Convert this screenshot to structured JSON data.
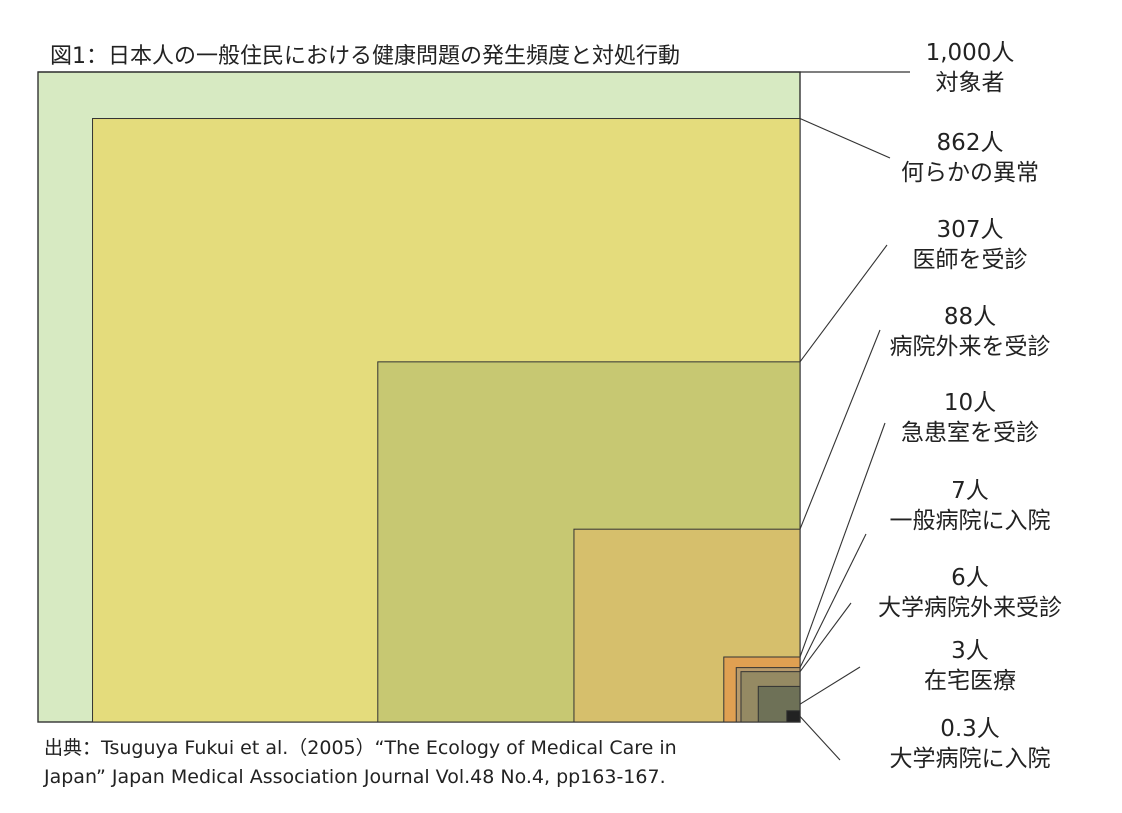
{
  "title": "図1：日本人の一般住民における健康問題の発生頻度と対処行動",
  "source": {
    "line1": "出典：Tsuguya Fukui et al.（2005）“The Ecology of Medical Care in",
    "line2": "Japan” Japan Medical Association Journal Vol.48 No.4, pp163-167."
  },
  "chart_data": {
    "type": "nested-area",
    "title": "図1：日本人の一般住民における健康問題の発生頻度と対処行動",
    "unit": "人",
    "series": [
      {
        "value": 1000,
        "value_label": "1,000人",
        "label": "対象者",
        "color": "#d7eac2"
      },
      {
        "value": 862,
        "value_label": "862人",
        "label": "何らかの異常",
        "color": "#e4dc7c"
      },
      {
        "value": 307,
        "value_label": "307人",
        "label": "医師を受診",
        "color": "#c7c872"
      },
      {
        "value": 88,
        "value_label": "88人",
        "label": "病院外来を受診",
        "color": "#d6bf6c"
      },
      {
        "value": 10,
        "value_label": "10人",
        "label": "急患室を受診",
        "color": "#e0a052"
      },
      {
        "value": 7,
        "value_label": "7人",
        "label": "一般病院に入院",
        "color": "#b79a6c"
      },
      {
        "value": 6,
        "value_label": "6人",
        "label": "大学病院外来受診",
        "color": "#958a63"
      },
      {
        "value": 3,
        "value_label": "3人",
        "label": "在宅医療",
        "color": "#6e7157"
      },
      {
        "value": 0.3,
        "value_label": "0.3人",
        "label": "大学病院に入院",
        "color": "#222222"
      }
    ]
  }
}
